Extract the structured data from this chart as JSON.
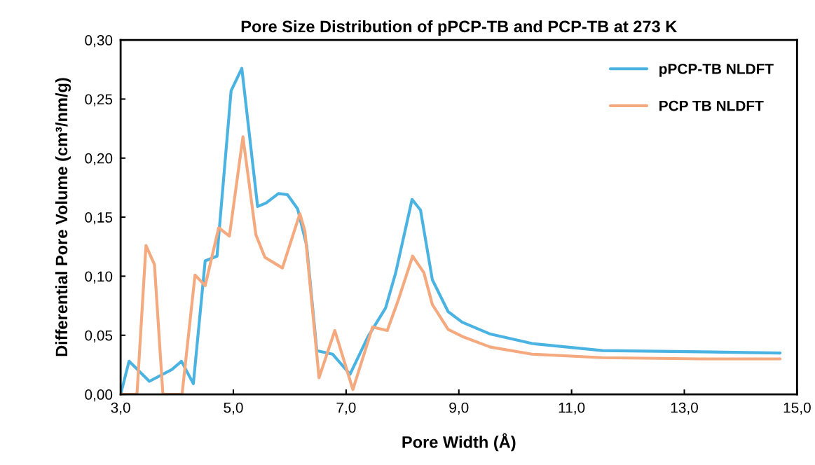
{
  "chart_data": {
    "type": "line",
    "title": "Pore Size Distribution of pPCP-TB and PCP-TB at 273 K",
    "xlabel": "Pore Width (Å)",
    "ylabel": "Differential Pore Volume (cm³/nm/g)",
    "xlim": [
      3.0,
      15.0
    ],
    "ylim": [
      0.0,
      0.3
    ],
    "xticks": [
      {
        "value": 3.0,
        "label": "3,0"
      },
      {
        "value": 5.0,
        "label": "5,0"
      },
      {
        "value": 7.0,
        "label": "7,0"
      },
      {
        "value": 9.0,
        "label": "9,0"
      },
      {
        "value": 11.0,
        "label": "11,0"
      },
      {
        "value": 13.0,
        "label": "13,0"
      },
      {
        "value": 15.0,
        "label": "15,0"
      }
    ],
    "yticks": [
      {
        "value": 0.0,
        "label": "0,00"
      },
      {
        "value": 0.05,
        "label": "0,05"
      },
      {
        "value": 0.1,
        "label": "0,10"
      },
      {
        "value": 0.15,
        "label": "0,15"
      },
      {
        "value": 0.2,
        "label": "0,20"
      },
      {
        "value": 0.25,
        "label": "0,25"
      },
      {
        "value": 0.3,
        "label": "0,30"
      }
    ],
    "grid": false,
    "legend": "top right",
    "marker": "none",
    "line_style": "solid",
    "series": [
      {
        "name": "pPCP-TB NLDFT",
        "color": "#4ab3e2",
        "x": [
          3.0,
          3.15,
          3.51,
          3.91,
          4.08,
          4.29,
          4.5,
          4.71,
          4.96,
          5.15,
          5.43,
          5.58,
          5.8,
          5.96,
          6.14,
          6.3,
          6.48,
          6.76,
          7.07,
          7.39,
          7.7,
          7.88,
          8.17,
          8.32,
          8.53,
          8.81,
          9.06,
          9.56,
          10.3,
          11.55,
          13.29,
          14.7
        ],
        "values": [
          0.0,
          0.028,
          0.011,
          0.021,
          0.028,
          0.009,
          0.113,
          0.117,
          0.257,
          0.276,
          0.159,
          0.162,
          0.17,
          0.169,
          0.157,
          0.126,
          0.037,
          0.034,
          0.017,
          0.049,
          0.073,
          0.103,
          0.165,
          0.156,
          0.097,
          0.07,
          0.061,
          0.051,
          0.043,
          0.037,
          0.036,
          0.035
        ]
      },
      {
        "name": "PCP TB NLDFT",
        "color": "#f4a97f",
        "x": [
          3.0,
          3.29,
          3.45,
          3.6,
          3.75,
          4.09,
          4.32,
          4.5,
          4.74,
          4.93,
          5.17,
          5.4,
          5.56,
          5.87,
          6.18,
          6.27,
          6.52,
          6.8,
          7.12,
          7.47,
          7.73,
          7.92,
          8.18,
          8.38,
          8.53,
          8.81,
          9.06,
          9.56,
          10.3,
          11.55,
          13.29,
          14.7
        ],
        "values": [
          0.0,
          0.0,
          0.126,
          0.11,
          0.0,
          0.0,
          0.101,
          0.092,
          0.141,
          0.134,
          0.218,
          0.135,
          0.116,
          0.107,
          0.153,
          0.138,
          0.014,
          0.054,
          0.004,
          0.057,
          0.054,
          0.079,
          0.117,
          0.103,
          0.076,
          0.055,
          0.049,
          0.04,
          0.034,
          0.031,
          0.03,
          0.03
        ]
      }
    ]
  }
}
